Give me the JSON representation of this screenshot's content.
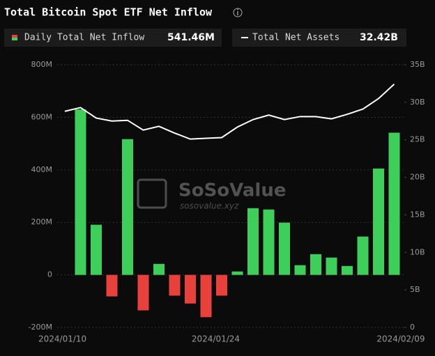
{
  "chart_data": {
    "type": "bar",
    "title": "Total Bitcoin Spot ETF Net Inflow",
    "watermark": [
      "SoSoValue",
      "sosovalue.xyz"
    ],
    "categories": [
      "2024/01/10",
      null,
      null,
      null,
      null,
      null,
      null,
      null,
      null,
      "2024/01/24",
      null,
      null,
      null,
      null,
      null,
      null,
      null,
      null,
      null,
      null,
      null,
      "2024/02/09"
    ],
    "series": [
      {
        "name": "Daily Total Net Inflow",
        "type": "bar",
        "positive_color": "#3ecf5a",
        "negative_color": "#e8413c",
        "last_value_label": "541.46M",
        "values": [
          null,
          630,
          191,
          -82,
          517,
          -135,
          42,
          -79,
          -109,
          -161,
          -79,
          13,
          254,
          249,
          199,
          37,
          79,
          66,
          34,
          146,
          405,
          541.46
        ]
      },
      {
        "name": "Total Net Assets",
        "type": "line",
        "axis": "y2",
        "color": "#ffffff",
        "last_value_label": "32.42B",
        "values": [
          28.8,
          29.3,
          27.9,
          27.5,
          27.6,
          26.3,
          26.8,
          25.9,
          25.1,
          25.2,
          25.3,
          26.7,
          27.7,
          28.3,
          27.7,
          28.1,
          28.1,
          27.8,
          28.4,
          29.1,
          30.5,
          32.42
        ]
      }
    ],
    "ylim": [
      -200,
      800
    ],
    "yticks": [
      {
        "value": -200,
        "label": "-200M"
      },
      0,
      {
        "value": 200,
        "label": "200M"
      },
      {
        "value": 400,
        "label": "400M"
      },
      {
        "value": 600,
        "label": "600M"
      },
      {
        "value": 800,
        "label": "800M"
      }
    ],
    "y2lim": [
      0,
      35
    ],
    "y2ticks": [
      0,
      {
        "value": 5,
        "label": "5B"
      },
      {
        "value": 10,
        "label": "10B"
      },
      {
        "value": 15,
        "label": "15B"
      },
      {
        "value": 20,
        "label": "20B"
      },
      {
        "value": 25,
        "label": "25B"
      },
      {
        "value": 30,
        "label": "30B"
      },
      {
        "value": 35,
        "label": "35B"
      }
    ],
    "grid": true
  }
}
